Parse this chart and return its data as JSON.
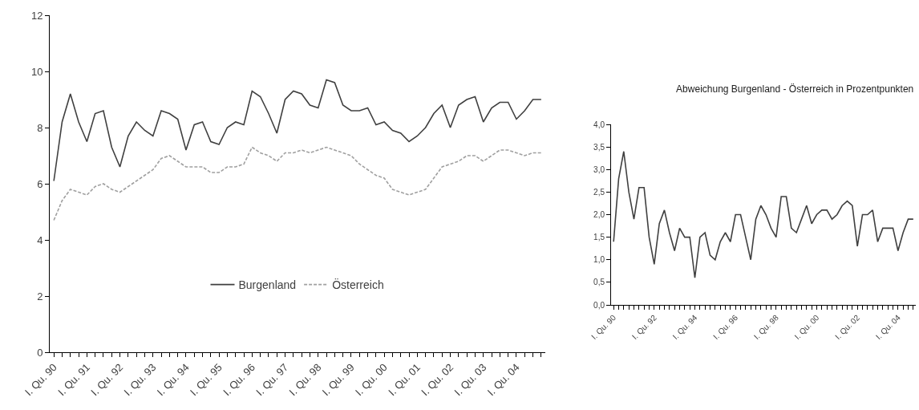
{
  "chart_data": [
    {
      "type": "line",
      "categories": [
        "I. Qu. 90",
        null,
        null,
        null,
        "I. Qu. 91",
        null,
        null,
        null,
        "I. Qu. 92",
        null,
        null,
        null,
        "I. Qu. 93",
        null,
        null,
        null,
        "I. Qu. 94",
        null,
        null,
        null,
        "I. Qu. 95",
        null,
        null,
        null,
        "I. Qu. 96",
        null,
        null,
        null,
        "I. Qu. 97",
        null,
        null,
        null,
        "I. Qu. 98",
        null,
        null,
        null,
        "I. Qu. 99",
        null,
        null,
        null,
        "I. Qu. 00",
        null,
        null,
        null,
        "I. Qu. 01",
        null,
        null,
        null,
        "I. Qu. 02",
        null,
        null,
        null,
        "I. Qu. 03",
        null,
        null,
        null,
        "I. Qu. 04",
        null,
        null,
        null
      ],
      "series": [
        {
          "name": "Burgenland",
          "color": "#404040",
          "line_style": "solid",
          "values": [
            6.1,
            8.2,
            9.2,
            8.2,
            7.5,
            8.5,
            8.6,
            7.3,
            6.6,
            7.7,
            8.2,
            7.9,
            7.7,
            8.6,
            8.5,
            8.3,
            7.2,
            8.1,
            8.2,
            7.5,
            7.4,
            8.0,
            8.2,
            8.1,
            9.3,
            9.1,
            8.5,
            7.8,
            9.0,
            9.3,
            9.2,
            8.8,
            8.7,
            9.7,
            9.6,
            8.8,
            8.6,
            8.6,
            8.7,
            8.1,
            8.2,
            7.9,
            7.8,
            7.5,
            7.7,
            8.0,
            8.5,
            8.8,
            8.0,
            8.8,
            9.0,
            9.1,
            8.2,
            8.7,
            8.9,
            8.9,
            8.3,
            8.6,
            9.0,
            9.0
          ]
        },
        {
          "name": "Österreich",
          "color": "#a0a0a0",
          "line_style": "dashed",
          "values": [
            4.7,
            5.4,
            5.8,
            5.7,
            5.6,
            5.9,
            6.0,
            5.8,
            5.7,
            5.9,
            6.1,
            6.3,
            6.5,
            6.9,
            7.0,
            6.8,
            6.6,
            6.6,
            6.6,
            6.4,
            6.4,
            6.6,
            6.6,
            6.7,
            7.3,
            7.1,
            7.0,
            6.8,
            7.1,
            7.1,
            7.2,
            7.1,
            7.2,
            7.3,
            7.2,
            7.1,
            7.0,
            6.7,
            6.5,
            6.3,
            6.2,
            5.8,
            5.7,
            5.6,
            5.7,
            5.8,
            6.2,
            6.6,
            6.7,
            6.8,
            7.0,
            7.0,
            6.8,
            7.0,
            7.2,
            7.2,
            7.1,
            7.0,
            7.1,
            7.1
          ]
        }
      ],
      "ylim": [
        0,
        12
      ],
      "yticks": [
        0,
        2,
        4,
        6,
        8,
        10,
        12
      ],
      "grid": false,
      "legend": "bottom",
      "marker": "none"
    },
    {
      "type": "line",
      "title": "Abweichung Burgenland - Österreich in Prozentpunkten",
      "categories": [
        "I. Qu. 90",
        null,
        null,
        null,
        null,
        null,
        null,
        null,
        "I. Qu. 92",
        null,
        null,
        null,
        null,
        null,
        null,
        null,
        "I. Qu. 94",
        null,
        null,
        null,
        null,
        null,
        null,
        null,
        "I. Qu. 96",
        null,
        null,
        null,
        null,
        null,
        null,
        null,
        "I. Qu. 98",
        null,
        null,
        null,
        null,
        null,
        null,
        null,
        "I. Qu. 00",
        null,
        null,
        null,
        null,
        null,
        null,
        null,
        "I. Qu. 02",
        null,
        null,
        null,
        null,
        null,
        null,
        null,
        "I. Qu. 04",
        null,
        null,
        null
      ],
      "series": [
        {
          "color": "#404040",
          "line_style": "solid",
          "values": [
            1.4,
            2.8,
            3.4,
            2.5,
            1.9,
            2.6,
            2.6,
            1.5,
            0.9,
            1.8,
            2.1,
            1.6,
            1.2,
            1.7,
            1.5,
            1.5,
            0.6,
            1.5,
            1.6,
            1.1,
            1.0,
            1.4,
            1.6,
            1.4,
            2.0,
            2.0,
            1.5,
            1.0,
            1.9,
            2.2,
            2.0,
            1.7,
            1.5,
            2.4,
            2.4,
            1.7,
            1.6,
            1.9,
            2.2,
            1.8,
            2.0,
            2.1,
            2.1,
            1.9,
            2.0,
            2.2,
            2.3,
            2.2,
            1.3,
            2.0,
            2.0,
            2.1,
            1.4,
            1.7,
            1.7,
            1.7,
            1.2,
            1.6,
            1.9,
            1.9
          ]
        }
      ],
      "ylim": [
        0,
        4
      ],
      "yticks": [
        {
          "value": 0,
          "label": "0,0"
        },
        {
          "value": 0.5,
          "label": "0,5"
        },
        {
          "value": 1,
          "label": "1,0"
        },
        {
          "value": 1.5,
          "label": "1,5"
        },
        {
          "value": 2,
          "label": "2,0"
        },
        {
          "value": 2.5,
          "label": "2,5"
        },
        {
          "value": 3,
          "label": "3,0"
        },
        {
          "value": 3.5,
          "label": "3,5"
        },
        {
          "value": 4,
          "label": "4,0"
        }
      ],
      "grid": false,
      "legend": false,
      "marker": "none"
    }
  ]
}
